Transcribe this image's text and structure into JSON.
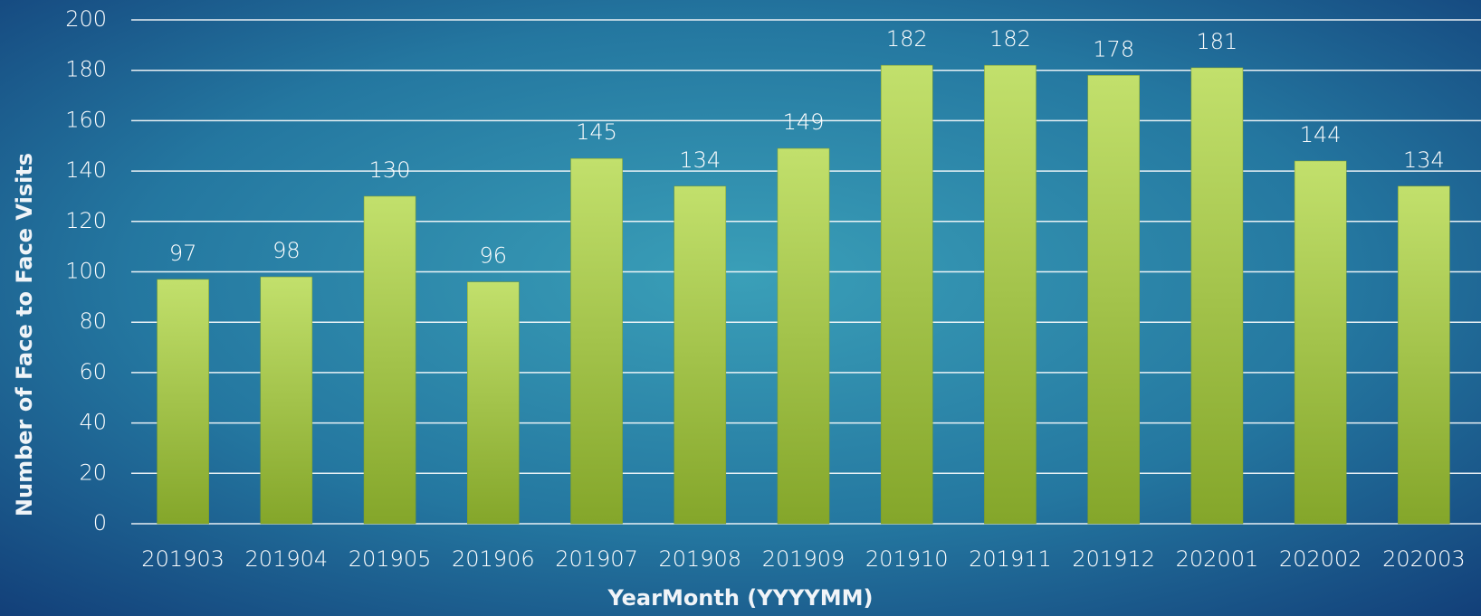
{
  "chart_data": {
    "type": "bar",
    "categories": [
      "201903",
      "201904",
      "201905",
      "201906",
      "201907",
      "201908",
      "201909",
      "201910",
      "201911",
      "201912",
      "202001",
      "202002",
      "202003"
    ],
    "values": [
      97,
      98,
      130,
      96,
      145,
      134,
      149,
      182,
      182,
      178,
      181,
      144,
      134
    ],
    "color": "#a8c84a",
    "xlabel": "YearMonth (YYYYMM)",
    "ylabel": "Number of Face to Face Visits",
    "ylim": [
      0,
      200
    ],
    "yticks": [
      0,
      20,
      40,
      60,
      80,
      100,
      120,
      140,
      160,
      180,
      200
    ],
    "grid": true
  }
}
